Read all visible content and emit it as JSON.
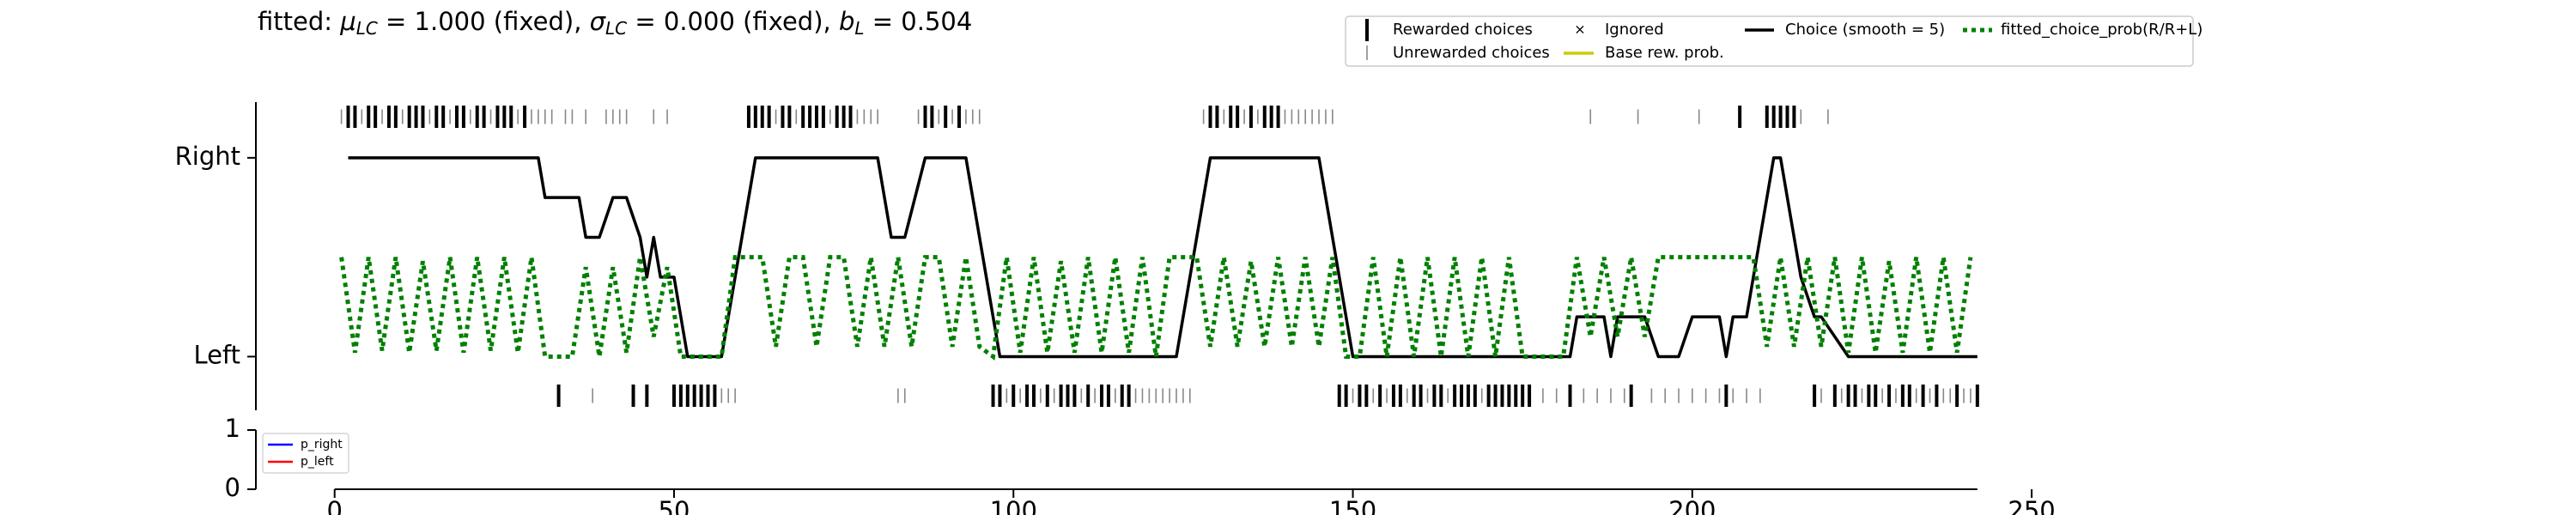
{
  "chart_data": {
    "type": "choice_history",
    "title_parts": [
      "fitted: ",
      "μ",
      "LC",
      " = 1.000 (fixed), ",
      "σ",
      "LC",
      " = 0.000 (fixed), ",
      "b",
      "L",
      " = 0.504"
    ],
    "xlim": [
      -11.6,
      262
    ],
    "xticks": [
      0,
      50,
      100,
      150,
      200,
      250
    ],
    "ylim": [
      -0.27,
      1.28
    ],
    "yticks": [
      {
        "value": 0,
        "label": "Left"
      },
      {
        "value": 1,
        "label": "Right"
      }
    ],
    "rewarded_choices": {
      "name": "Rewarded choices",
      "color": "#000000",
      "right": [
        2,
        3,
        5,
        6,
        8,
        9,
        11,
        12,
        13,
        15,
        16,
        18,
        19,
        21,
        22,
        24,
        25,
        26,
        28,
        61,
        62,
        63,
        64,
        66,
        67,
        69,
        70,
        71,
        72,
        74,
        75,
        76,
        87,
        88,
        90,
        92,
        129,
        130,
        132,
        133,
        135,
        137,
        138,
        139,
        207,
        211,
        212,
        213,
        214,
        215
      ],
      "left": [
        33,
        44,
        46,
        50,
        51,
        52,
        53,
        54,
        55,
        56,
        97,
        98,
        100,
        102,
        103,
        105,
        107,
        108,
        109,
        111,
        113,
        114,
        116,
        117,
        148,
        149,
        151,
        152,
        154,
        156,
        157,
        159,
        160,
        162,
        163,
        165,
        166,
        167,
        168,
        170,
        171,
        172,
        173,
        174,
        175,
        176,
        182,
        191,
        205,
        218,
        221,
        223,
        224,
        226,
        227,
        229,
        231,
        232,
        234,
        236,
        239,
        242
      ]
    },
    "unrewarded_choices": {
      "name": "Unrewarded choices",
      "color": "#888888",
      "right": [
        1,
        4,
        7,
        10,
        14,
        17,
        20,
        23,
        27,
        29,
        30,
        31,
        32,
        34,
        35,
        37,
        40,
        41,
        42,
        43,
        47,
        49,
        65,
        68,
        73,
        77,
        78,
        79,
        80,
        86,
        89,
        91,
        93,
        94,
        95,
        128,
        131,
        134,
        136,
        140,
        141,
        142,
        143,
        144,
        145,
        146,
        147,
        185,
        192,
        201,
        216,
        220
      ],
      "left": [
        38,
        57,
        58,
        59,
        83,
        84,
        99,
        101,
        104,
        106,
        110,
        112,
        115,
        118,
        119,
        120,
        121,
        122,
        123,
        124,
        125,
        126,
        150,
        153,
        155,
        158,
        161,
        164,
        169,
        178,
        180,
        184,
        186,
        188,
        190,
        194,
        196,
        198,
        200,
        202,
        204,
        206,
        208,
        210,
        219,
        222,
        225,
        228,
        230,
        233,
        235,
        237,
        238,
        240,
        241
      ]
    },
    "ignored": {
      "name": "Ignored",
      "color": "#ff0000"
    },
    "base_reward_prob": {
      "name": "Base rew. prob.",
      "color": "#cccc00"
    },
    "series": [
      {
        "name": "Choice (smooth = 5)",
        "color": "#000000",
        "x": [
          2,
          30,
          31,
          36,
          37,
          39,
          41,
          43,
          45,
          46,
          47,
          48,
          50,
          52,
          57,
          62,
          80,
          82,
          84,
          87,
          93,
          98,
          124,
          129,
          145,
          150,
          182,
          183,
          187,
          188,
          189,
          193,
          195,
          198,
          200,
          204,
          205,
          206,
          208,
          209,
          210,
          212,
          213,
          215,
          216,
          218,
          219,
          223,
          242
        ],
        "values": [
          1,
          1,
          0.8,
          0.8,
          0.6,
          0.6,
          0.8,
          0.8,
          0.6,
          0.4,
          0.6,
          0.4,
          0.4,
          0,
          0,
          1,
          1,
          0.6,
          0.6,
          1,
          1,
          0,
          0,
          1,
          1,
          0,
          0,
          0.2,
          0.2,
          0,
          0.2,
          0.2,
          0,
          0,
          0.2,
          0.2,
          0,
          0.2,
          0.2,
          0.4,
          0.6,
          1,
          1,
          0.6,
          0.4,
          0.2,
          0.2,
          0,
          0
        ]
      },
      {
        "name": "fitted_choice_prob(R/R+L)",
        "color": "#008000",
        "x": [
          1,
          3,
          5,
          7,
          9,
          11,
          13,
          15,
          17,
          19,
          21,
          23,
          25,
          27,
          29,
          31,
          33,
          35,
          37,
          39,
          41,
          43,
          45,
          47,
          49,
          51,
          53,
          55,
          57,
          59,
          61,
          63,
          65,
          67,
          69,
          71,
          73,
          75,
          77,
          79,
          81,
          83,
          85,
          87,
          89,
          91,
          93,
          95,
          97,
          99,
          101,
          103,
          105,
          107,
          109,
          111,
          113,
          115,
          117,
          119,
          121,
          123,
          125,
          127,
          129,
          131,
          133,
          135,
          137,
          139,
          141,
          143,
          145,
          147,
          149,
          151,
          153,
          155,
          157,
          159,
          161,
          163,
          165,
          167,
          169,
          171,
          173,
          175,
          177,
          179,
          181,
          183,
          185,
          187,
          189,
          191,
          193,
          195,
          197,
          199,
          201,
          203,
          205,
          207,
          209,
          211,
          213,
          215,
          217,
          219,
          221,
          223,
          225,
          227,
          229,
          231,
          233,
          235,
          237,
          239,
          241
        ],
        "values": [
          0.5,
          0.02,
          0.5,
          0.03,
          0.5,
          0.02,
          0.48,
          0.03,
          0.5,
          0.02,
          0.5,
          0.03,
          0.5,
          0.02,
          0.5,
          0,
          0,
          0,
          0.45,
          0,
          0.45,
          0.02,
          0.5,
          0.1,
          0.45,
          0,
          0,
          0,
          0,
          0.5,
          0.5,
          0.5,
          0.05,
          0.5,
          0.5,
          0.05,
          0.5,
          0.5,
          0.05,
          0.5,
          0.05,
          0.5,
          0.05,
          0.5,
          0.5,
          0.05,
          0.5,
          0.05,
          0,
          0.5,
          0.02,
          0.5,
          0.02,
          0.48,
          0.02,
          0.5,
          0.02,
          0.5,
          0.02,
          0.5,
          0,
          0.5,
          0.5,
          0.5,
          0.05,
          0.5,
          0.05,
          0.48,
          0.05,
          0.5,
          0.05,
          0.5,
          0.05,
          0.5,
          0,
          0,
          0.5,
          0,
          0.5,
          0,
          0.5,
          0,
          0.5,
          0,
          0.5,
          0,
          0.5,
          0,
          0,
          0,
          0,
          0.5,
          0.1,
          0.5,
          0.1,
          0.5,
          0.1,
          0.5,
          0.5,
          0.5,
          0.5,
          0.5,
          0.5,
          0.5,
          0.5,
          0.05,
          0.5,
          0.05,
          0.5,
          0.05,
          0.5,
          0.02,
          0.5,
          0.02,
          0.48,
          0.02,
          0.5,
          0.02,
          0.5,
          0.02,
          0.5
        ]
      }
    ],
    "lower": {
      "ylim": [
        0,
        1
      ],
      "yticks": [
        0,
        1
      ],
      "series": [
        {
          "name": "p_right",
          "color": "#0000ff"
        },
        {
          "name": "p_left",
          "color": "#ff0000"
        }
      ]
    }
  }
}
